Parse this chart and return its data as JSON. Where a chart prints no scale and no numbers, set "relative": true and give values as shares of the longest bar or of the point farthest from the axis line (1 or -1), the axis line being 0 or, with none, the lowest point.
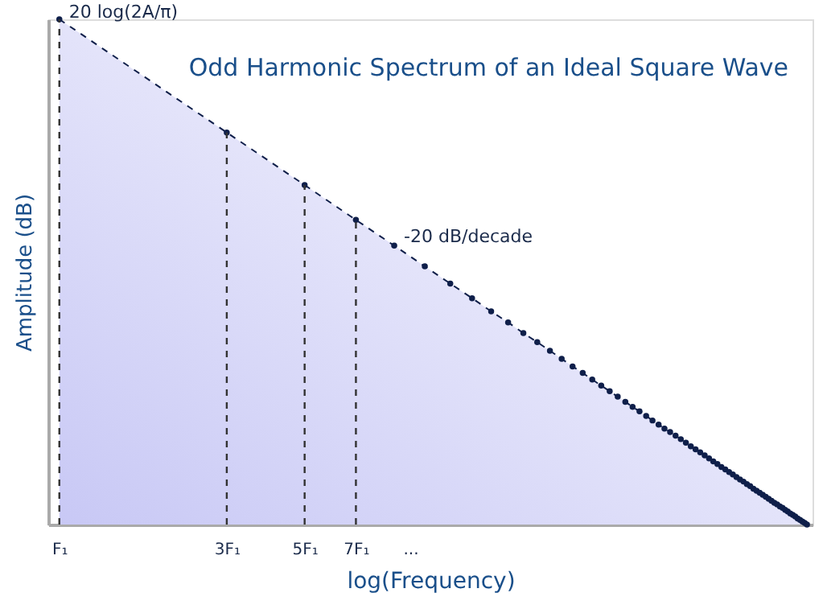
{
  "chart_data": {
    "type": "area",
    "title": "Odd Harmonic Spectrum of an Ideal Square Wave",
    "xlabel": "log(Frequency)",
    "ylabel": "Amplitude (dB)",
    "relative": true,
    "log": "x",
    "x": [
      1,
      3,
      5,
      7,
      9,
      11,
      13,
      15,
      17,
      19,
      21,
      23,
      25,
      27,
      29,
      31,
      33,
      35,
      37,
      39,
      41,
      43,
      45,
      47,
      49,
      51,
      53,
      55,
      57,
      59,
      61,
      63,
      65,
      67,
      69,
      71,
      73,
      75,
      77,
      79,
      81,
      83,
      85,
      87,
      89,
      91,
      93,
      95,
      97,
      99,
      101,
      103,
      105,
      107,
      109,
      111,
      113,
      115,
      117,
      119,
      121,
      123,
      125,
      127,
      129,
      131,
      133,
      135
    ],
    "series": [
      {
        "color": "#c8c8f5",
        "values": [
          1.0,
          0.776,
          0.672,
          0.603,
          0.552,
          0.511,
          0.477,
          0.448,
          0.422,
          0.4,
          0.379,
          0.361,
          0.344,
          0.328,
          0.313,
          0.3,
          0.287,
          0.275,
          0.264,
          0.253,
          0.243,
          0.233,
          0.224,
          0.215,
          0.206,
          0.198,
          0.19,
          0.183,
          0.176,
          0.169,
          0.162,
          0.155,
          0.149,
          0.143,
          0.137,
          0.131,
          0.125,
          0.12,
          0.114,
          0.109,
          0.104,
          0.099,
          0.094,
          0.089,
          0.085,
          0.08,
          0.076,
          0.071,
          0.067,
          0.063,
          0.059,
          0.055,
          0.051,
          0.047,
          0.043,
          0.04,
          0.036,
          0.033,
          0.029,
          0.026,
          0.022,
          0.019,
          0.016,
          0.012,
          0.009,
          0.006,
          0.003,
          0.0
        ]
      }
    ],
    "marker": "circle",
    "line_style": "dashed",
    "grid": false,
    "xlim": [
      0.93,
      140
    ],
    "xticks": [
      {
        "value": 1,
        "label": "F₁"
      },
      {
        "value": 3,
        "label": "3F₁"
      },
      {
        "value": 5,
        "label": "5F₁"
      },
      {
        "value": 7,
        "label": "7F₁"
      },
      {
        "value": 10,
        "label": "..."
      }
    ],
    "ref_lines": [
      {
        "axis": "x",
        "value": 1,
        "line_style": "dashed"
      },
      {
        "axis": "x",
        "value": 3,
        "line_style": "dashed"
      },
      {
        "axis": "x",
        "value": 5,
        "line_style": "dashed"
      },
      {
        "axis": "x",
        "value": 7,
        "line_style": "dashed"
      }
    ],
    "annotations": [
      {
        "text": "20 log(2A/π)",
        "x": 1,
        "y": 1
      },
      {
        "text": "-20 dB/decade",
        "x": 9,
        "y": 0.55
      }
    ]
  }
}
